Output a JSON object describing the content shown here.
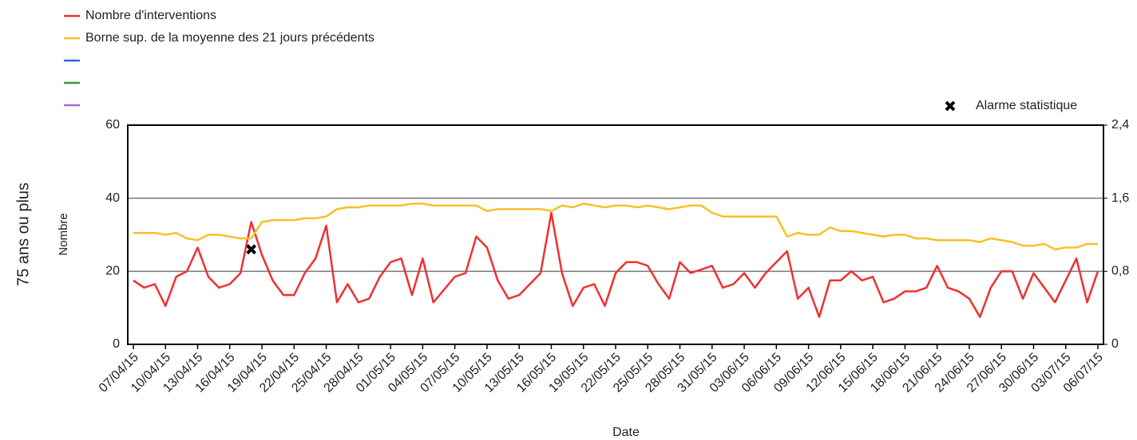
{
  "chart_data": {
    "type": "line",
    "y_side_label": "75 ans ou plus",
    "ylabel": "Nombre",
    "xlabel": "Date",
    "categories": [
      "07/04/15",
      null,
      null,
      "10/04/15",
      null,
      null,
      "13/04/15",
      null,
      null,
      "16/04/15",
      null,
      null,
      "19/04/15",
      null,
      null,
      "22/04/15",
      null,
      null,
      "25/04/15",
      null,
      null,
      "28/04/15",
      null,
      null,
      "01/05/15",
      null,
      null,
      "04/05/15",
      null,
      null,
      "07/05/15",
      null,
      null,
      "10/05/15",
      null,
      null,
      "13/05/15",
      null,
      null,
      "16/05/15",
      null,
      null,
      "19/05/15",
      null,
      null,
      "22/05/15",
      null,
      null,
      "25/05/15",
      null,
      null,
      "28/05/15",
      null,
      null,
      "31/05/15",
      null,
      null,
      "03/06/15",
      null,
      null,
      "06/06/15",
      null,
      null,
      "09/06/15",
      null,
      null,
      "12/06/15",
      null,
      null,
      "15/06/15",
      null,
      null,
      "18/06/15",
      null,
      null,
      "21/06/15",
      null,
      null,
      "24/06/15",
      null,
      null,
      "27/06/15",
      null,
      null,
      "30/06/15",
      null,
      null,
      "03/07/15",
      null,
      null,
      "06/07/15"
    ],
    "series": [
      {
        "name": "Nombre d'interventions",
        "color": "#f03030",
        "values": [
          17.5,
          15.5,
          16.5,
          10.5,
          18.5,
          20,
          26.5,
          18.5,
          15.5,
          16.5,
          19.5,
          33.5,
          24.5,
          17.5,
          13.5,
          13.5,
          19.5,
          23.5,
          32.5,
          11.5,
          16.5,
          11.5,
          12.5,
          18.5,
          22.5,
          23.5,
          13.5,
          23.5,
          11.5,
          15,
          18.5,
          19.5,
          29.5,
          26.5,
          17.5,
          12.5,
          13.5,
          16.5,
          19.5,
          36,
          19.5,
          10.5,
          15.5,
          16.5,
          10.5,
          19.5,
          22.5,
          22.5,
          21.5,
          16.5,
          12.5,
          22.5,
          19.5,
          20.5,
          21.5,
          15.5,
          16.5,
          19.5,
          15.5,
          19.5,
          22.5,
          25.5,
          12.5,
          15.5,
          7.5,
          17.5,
          17.5,
          20,
          17.5,
          18.5,
          11.5,
          12.5,
          14.5,
          14.5,
          15.5,
          21.5,
          15.5,
          14.5,
          12.5,
          7.5,
          15.5,
          20,
          20,
          12.5,
          19.5,
          15.5,
          11.5,
          17.5,
          23.5,
          11.5,
          20
        ]
      },
      {
        "name": "Borne sup. de la moyenne des 21 jours précédents",
        "color": "#f7c028",
        "values": [
          30.5,
          30.5,
          30.5,
          30,
          30.5,
          29,
          28.5,
          30,
          30,
          29.5,
          29,
          29,
          33.5,
          34,
          34,
          34,
          34.5,
          34.5,
          35,
          37,
          37.5,
          37.5,
          38,
          38,
          38,
          38,
          38.5,
          38.5,
          38,
          38,
          38,
          38,
          38,
          36.5,
          37,
          37,
          37,
          37,
          37,
          36.5,
          38,
          37.5,
          38.5,
          38,
          37.5,
          38,
          38,
          37.5,
          38,
          37.5,
          37,
          37.5,
          38,
          38,
          36,
          35,
          35,
          35,
          35,
          35,
          35,
          29.5,
          30.5,
          30,
          30,
          32,
          31,
          31,
          30.5,
          30,
          29.5,
          30,
          30,
          29,
          29,
          28.5,
          28.5,
          28.5,
          28.5,
          28,
          29,
          28.5,
          28,
          27,
          27,
          27.5,
          26,
          26.5,
          26.5,
          27.5,
          27.5
        ]
      },
      {
        "name": "Alarme statistique",
        "color": "#000000",
        "marker": "x",
        "values": [
          null,
          null,
          null,
          null,
          null,
          null,
          null,
          null,
          null,
          null,
          null,
          26,
          null,
          null,
          null,
          null,
          null,
          null,
          null,
          null,
          null,
          null,
          null,
          null,
          null,
          null,
          null,
          null,
          null,
          null,
          null,
          null,
          null,
          null,
          null,
          null,
          null,
          null,
          null,
          null,
          null,
          null,
          null,
          null,
          null,
          null,
          null,
          null,
          null,
          null,
          null,
          null,
          null,
          null,
          null,
          null,
          null,
          null,
          null,
          null,
          null,
          null,
          null,
          null,
          null,
          null,
          null,
          null,
          null,
          null,
          null,
          null,
          null,
          null,
          null,
          null,
          null,
          null,
          null,
          null,
          null,
          null,
          null,
          null,
          null,
          null,
          null,
          null,
          null,
          null,
          null
        ]
      }
    ],
    "ylim": [
      0,
      60
    ],
    "yticks": [
      0,
      20,
      40,
      60
    ],
    "y2lim": [
      0,
      2.4
    ],
    "y2ticks": [
      0,
      {
        "value": 0.8,
        "label": "0,8"
      },
      {
        "value": 1.6,
        "label": "1,6"
      },
      {
        "value": 2.4,
        "label": "2,4"
      }
    ],
    "grid": true
  }
}
